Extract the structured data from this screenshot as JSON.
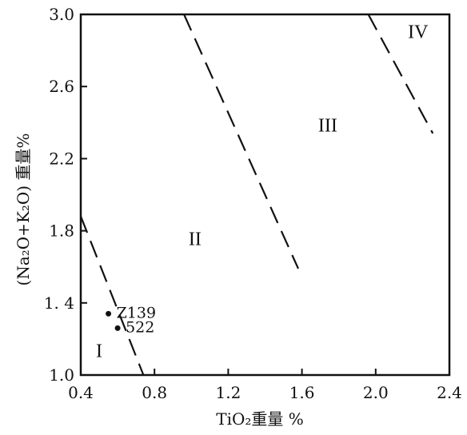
{
  "chart_data": {
    "type": "scatter",
    "title": "",
    "xlabel": "TiO₂重量 %",
    "ylabel": "(Na₂O+K₂O) 重量%",
    "xlim": [
      0.4,
      2.4
    ],
    "ylim": [
      1.0,
      3.0
    ],
    "x_ticks": [
      0.4,
      0.8,
      1.2,
      1.6,
      2.0,
      2.4
    ],
    "x_tick_labels": [
      "0.4",
      "0.8",
      "1.2",
      "1.6",
      "2.0",
      "2.4"
    ],
    "y_ticks": [
      1.0,
      1.4,
      1.8,
      2.2,
      2.6,
      3.0
    ],
    "y_tick_labels": [
      "1.0",
      "1. 4",
      "1.8",
      "2.2",
      "2.6",
      "3.0"
    ],
    "grid": false,
    "points": [
      {
        "label": "Z139",
        "x": 0.55,
        "y": 1.34
      },
      {
        "label": "522",
        "x": 0.6,
        "y": 1.26
      }
    ],
    "boundaries": [
      {
        "x": [
          0.4,
          0.74
        ],
        "y": [
          1.88,
          1.0
        ]
      },
      {
        "x": [
          0.96,
          1.58
        ],
        "y": [
          3.0,
          1.59
        ]
      },
      {
        "x": [
          1.96,
          2.31
        ],
        "y": [
          3.0,
          2.34
        ]
      }
    ],
    "regions": [
      {
        "label": "I",
        "x": 0.5,
        "y": 1.1
      },
      {
        "label": "II",
        "x": 1.02,
        "y": 1.72
      },
      {
        "label": "III",
        "x": 1.74,
        "y": 2.35
      },
      {
        "label": "IV",
        "x": 2.23,
        "y": 2.87
      }
    ]
  }
}
